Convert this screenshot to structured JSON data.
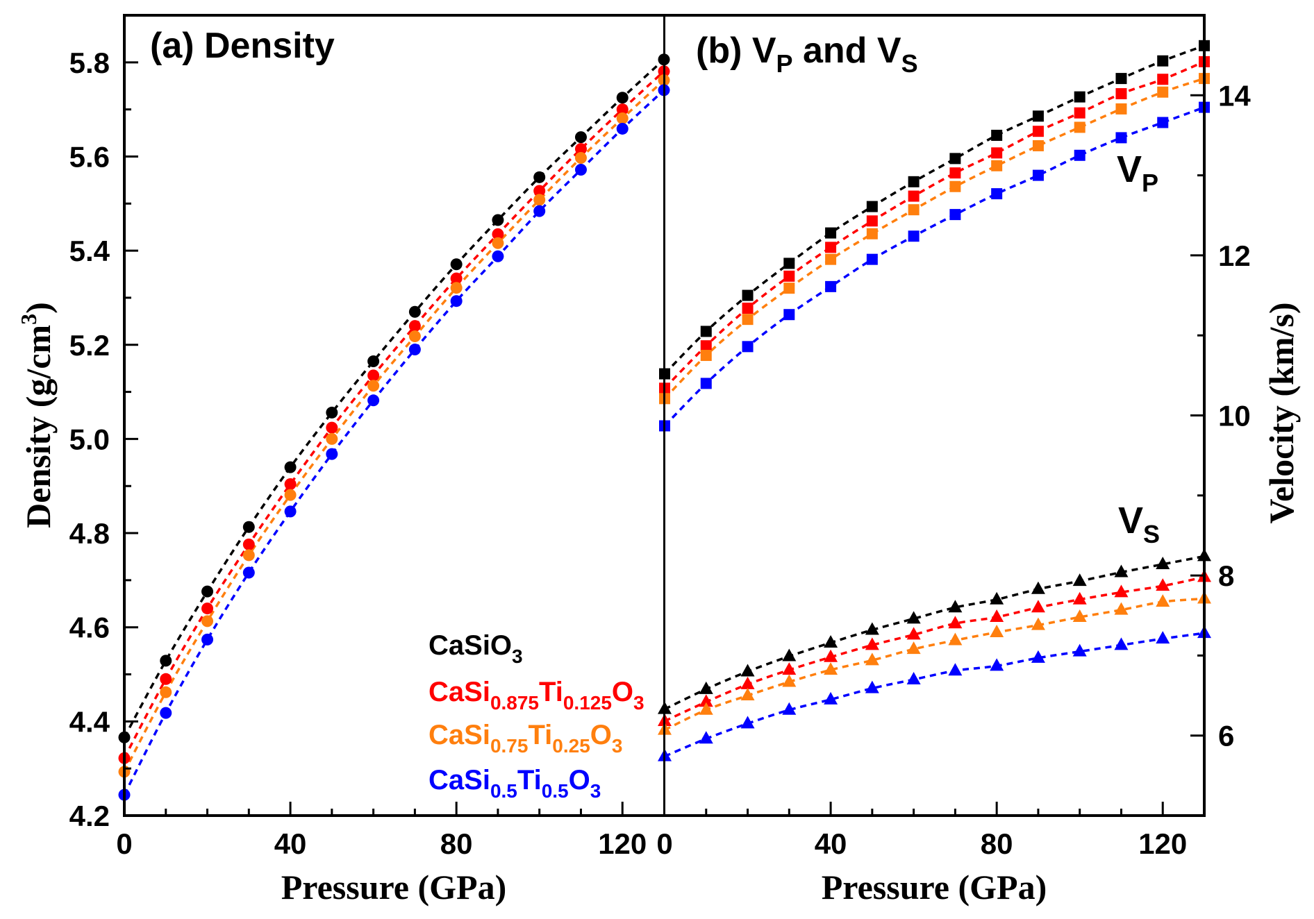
{
  "chart_data": [
    {
      "id": "density",
      "type": "line",
      "title": "(a) Density",
      "xlabel": "Pressure (GPa)",
      "ylabel": "Density (g/cm",
      "ylabel_sup": "3",
      "ylabel_tail": ")",
      "xlim": [
        0,
        130
      ],
      "ylim": [
        4.2,
        5.9
      ],
      "xticks": [
        0,
        40,
        80,
        120
      ],
      "xtick_labels": [
        "0",
        "40",
        "80",
        "120"
      ],
      "xminor_step": 10,
      "yticks": [
        4.2,
        4.4,
        4.6,
        4.8,
        5.0,
        5.2,
        5.4,
        5.6,
        5.8
      ],
      "ytick_labels": [
        "4.2",
        "4.4",
        "4.6",
        "4.8",
        "5.0",
        "5.2",
        "5.4",
        "5.6",
        "5.8"
      ],
      "yminor_step": 0.1,
      "marker": "circle",
      "line_style": "dashed",
      "grid": false,
      "x": [
        0,
        10,
        20,
        30,
        40,
        50,
        60,
        70,
        80,
        90,
        100,
        110,
        120,
        130
      ],
      "series": [
        {
          "name": "CaSiO3",
          "color": "#000000",
          "values": [
            4.366,
            4.529,
            4.676,
            4.813,
            4.94,
            5.056,
            5.165,
            5.27,
            5.371,
            5.465,
            5.556,
            5.641,
            5.725,
            5.806
          ]
        },
        {
          "name": "CaSi0.875Ti0.125O3",
          "color": "#ff0000",
          "values": [
            4.322,
            4.49,
            4.64,
            4.776,
            4.904,
            5.024,
            5.135,
            5.24,
            5.341,
            5.435,
            5.527,
            5.616,
            5.7,
            5.781
          ]
        },
        {
          "name": "CaSi0.75Ti0.25O3",
          "color": "#ff7f0e",
          "values": [
            4.293,
            4.462,
            4.613,
            4.753,
            4.881,
            5.0,
            5.113,
            5.218,
            5.321,
            5.416,
            5.508,
            5.597,
            5.681,
            5.762
          ]
        },
        {
          "name": "CaSi0.5Ti0.5O3",
          "color": "#0000ff",
          "values": [
            4.244,
            4.418,
            4.574,
            4.716,
            4.846,
            4.968,
            5.082,
            5.19,
            5.293,
            5.388,
            5.484,
            5.572,
            5.659,
            5.741
          ]
        }
      ]
    },
    {
      "id": "velocity",
      "type": "line",
      "title_parts": [
        "(b) V",
        "P",
        " and V",
        "S"
      ],
      "xlabel": "Pressure (GPa)",
      "ylabel": "Velocity (km/s)",
      "xlim": [
        0,
        130
      ],
      "ylim": [
        5,
        15
      ],
      "xticks": [
        0,
        40,
        80,
        120
      ],
      "xtick_labels": [
        "0",
        "40",
        "80",
        "120"
      ],
      "xminor_step": 10,
      "yticks": [
        6,
        8,
        10,
        12,
        14
      ],
      "ytick_labels": [
        "6",
        "8",
        "10",
        "12",
        "14"
      ],
      "yminor_step": 1,
      "yaxis_side": "right",
      "line_style": "dashed",
      "grid": false,
      "annotations": [
        {
          "text": "V",
          "sub": "P",
          "near": "VP curves, upper right"
        },
        {
          "text": "V",
          "sub": "S",
          "near": "VS curves, lower right"
        }
      ],
      "x": [
        0,
        10,
        20,
        30,
        40,
        50,
        60,
        70,
        80,
        90,
        100,
        110,
        120,
        130
      ],
      "series": [
        {
          "name": "CaSiO3 VP",
          "group": "VP",
          "marker": "square",
          "color": "#000000",
          "values": [
            10.52,
            11.05,
            11.5,
            11.9,
            12.28,
            12.61,
            12.92,
            13.21,
            13.5,
            13.74,
            13.98,
            14.21,
            14.43,
            14.62
          ]
        },
        {
          "name": "CaSi0.875Ti0.125O3 VP",
          "group": "VP",
          "marker": "square",
          "color": "#ff0000",
          "values": [
            10.34,
            10.87,
            11.34,
            11.74,
            12.1,
            12.43,
            12.74,
            13.03,
            13.28,
            13.55,
            13.78,
            14.02,
            14.2,
            14.42
          ]
        },
        {
          "name": "CaSi0.75Ti0.25O3 VP",
          "group": "VP",
          "marker": "square",
          "color": "#ff7f0e",
          "values": [
            10.21,
            10.75,
            11.2,
            11.59,
            11.95,
            12.27,
            12.57,
            12.86,
            13.12,
            13.37,
            13.6,
            13.83,
            14.04,
            14.21
          ]
        },
        {
          "name": "CaSi0.5Ti0.5O3 VP",
          "group": "VP",
          "marker": "square",
          "color": "#0000ff",
          "values": [
            9.87,
            10.4,
            10.86,
            11.26,
            11.61,
            11.95,
            12.24,
            12.51,
            12.77,
            13.0,
            13.25,
            13.47,
            13.66,
            13.85
          ]
        },
        {
          "name": "CaSiO3 VS",
          "group": "VS",
          "marker": "triangle",
          "color": "#000000",
          "values": [
            6.33,
            6.58,
            6.8,
            6.99,
            7.16,
            7.32,
            7.46,
            7.6,
            7.7,
            7.83,
            7.93,
            8.04,
            8.14,
            8.24
          ]
        },
        {
          "name": "CaSi0.875Ti0.125O3 VS",
          "group": "VS",
          "marker": "triangle",
          "color": "#ff0000",
          "values": [
            6.18,
            6.42,
            6.64,
            6.82,
            6.98,
            7.13,
            7.26,
            7.4,
            7.48,
            7.6,
            7.7,
            7.79,
            7.87,
            7.98
          ]
        },
        {
          "name": "CaSi0.75Ti0.25O3 VS",
          "group": "VS",
          "marker": "triangle",
          "color": "#ff7f0e",
          "values": [
            6.07,
            6.32,
            6.5,
            6.67,
            6.82,
            6.94,
            7.08,
            7.19,
            7.29,
            7.38,
            7.48,
            7.57,
            7.67,
            7.71
          ]
        },
        {
          "name": "CaSi0.5Ti0.5O3 VS",
          "group": "VS",
          "marker": "triangle",
          "color": "#0000ff",
          "values": [
            5.74,
            5.96,
            6.15,
            6.32,
            6.45,
            6.59,
            6.7,
            6.81,
            6.87,
            6.97,
            7.05,
            7.13,
            7.21,
            7.28
          ]
        }
      ]
    }
  ],
  "legend": {
    "placement": "bottom-right of panel (a)",
    "entries": [
      {
        "parts": [
          {
            "t": "CaSiO",
            "sub": false
          },
          {
            "t": "3",
            "sub": true
          }
        ],
        "color": "#000000"
      },
      {
        "parts": [
          {
            "t": "CaSi",
            "sub": false
          },
          {
            "t": "0.875",
            "sub": true
          },
          {
            "t": "Ti",
            "sub": false
          },
          {
            "t": "0.125",
            "sub": true
          },
          {
            "t": "O",
            "sub": false
          },
          {
            "t": "3",
            "sub": true
          }
        ],
        "color": "#ff0000"
      },
      {
        "parts": [
          {
            "t": "CaSi",
            "sub": false
          },
          {
            "t": "0.75",
            "sub": true
          },
          {
            "t": "Ti",
            "sub": false
          },
          {
            "t": "0.25",
            "sub": true
          },
          {
            "t": "O",
            "sub": false
          },
          {
            "t": "3",
            "sub": true
          }
        ],
        "color": "#ff7f0e"
      },
      {
        "parts": [
          {
            "t": "CaSi",
            "sub": false
          },
          {
            "t": "0.5",
            "sub": true
          },
          {
            "t": "Ti",
            "sub": false
          },
          {
            "t": "0.5",
            "sub": true
          },
          {
            "t": "O",
            "sub": false
          },
          {
            "t": "3",
            "sub": true
          }
        ],
        "color": "#0000ff"
      }
    ]
  }
}
